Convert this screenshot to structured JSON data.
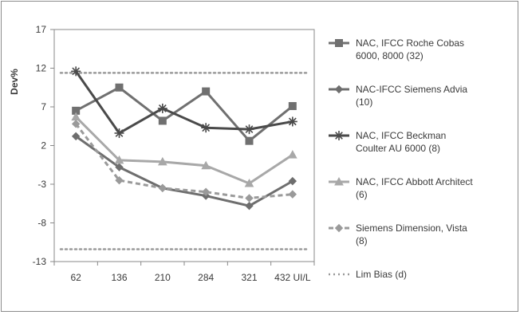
{
  "chart_data": {
    "type": "line",
    "title": "",
    "ylabel": "Dev%",
    "xlabel": "",
    "categories": [
      "62",
      "136",
      "210",
      "284",
      "321",
      "432 UI/L"
    ],
    "ylim": [
      -13,
      17
    ],
    "yticks": [
      "17",
      "12",
      "7",
      "2",
      "-3",
      "-8",
      "-13"
    ],
    "grid": false,
    "legend_position": "right",
    "series": [
      {
        "name": "NAC, IFCC Roche Cobas 6000, 8000 (32)",
        "legend_lines": [
          "NAC, IFCC Roche Cobas",
          "6000, 8000 (32)"
        ],
        "values": [
          6.5,
          9.5,
          5.2,
          9.0,
          2.6,
          7.1
        ],
        "color": "#707070",
        "marker": "square",
        "dash": "solid"
      },
      {
        "name": "NAC-IFCC Siemens Advia (10)",
        "legend_lines": [
          "NAC-IFCC Siemens Advia",
          "(10)"
        ],
        "values": [
          3.2,
          -0.8,
          -3.5,
          -4.5,
          -5.8,
          -2.6
        ],
        "color": "#6e6e6e",
        "marker": "diamond",
        "dash": "solid"
      },
      {
        "name": "NAC, IFCC Beckman Coulter AU 6000 (8)",
        "legend_lines": [
          "NAC, IFCC Beckman",
          "Coulter AU 6000 (8)"
        ],
        "values": [
          11.6,
          3.6,
          6.8,
          4.3,
          4.1,
          5.1
        ],
        "color": "#4a4a4a",
        "marker": "star",
        "dash": "solid"
      },
      {
        "name": "NAC, IFCC Abbott Architect (6)",
        "legend_lines": [
          "NAC, IFCC Abbott Architect",
          "(6)"
        ],
        "values": [
          5.7,
          0.1,
          -0.1,
          -0.6,
          -2.9,
          0.8
        ],
        "color": "#a8a8a8",
        "marker": "triangle",
        "dash": "solid"
      },
      {
        "name": "Siemens Dimension, Vista (8)",
        "legend_lines": [
          "Siemens Dimension, Vista",
          "(8)"
        ],
        "values": [
          4.8,
          -2.5,
          -3.5,
          -4.0,
          -4.8,
          -4.3
        ],
        "color": "#9a9a9a",
        "marker": "diamond",
        "dash": "dashed"
      },
      {
        "name": "Lim Bias (d)",
        "legend_lines": [
          "Lim Bias (d)"
        ],
        "values": [
          11.4,
          11.4,
          11.4,
          11.4,
          11.4,
          11.4
        ],
        "mirror_values": [
          -11.4,
          -11.4,
          -11.4,
          -11.4,
          -11.4,
          -11.4
        ],
        "color": "#9a9a9a",
        "marker": "none",
        "dash": "dotted"
      }
    ]
  }
}
